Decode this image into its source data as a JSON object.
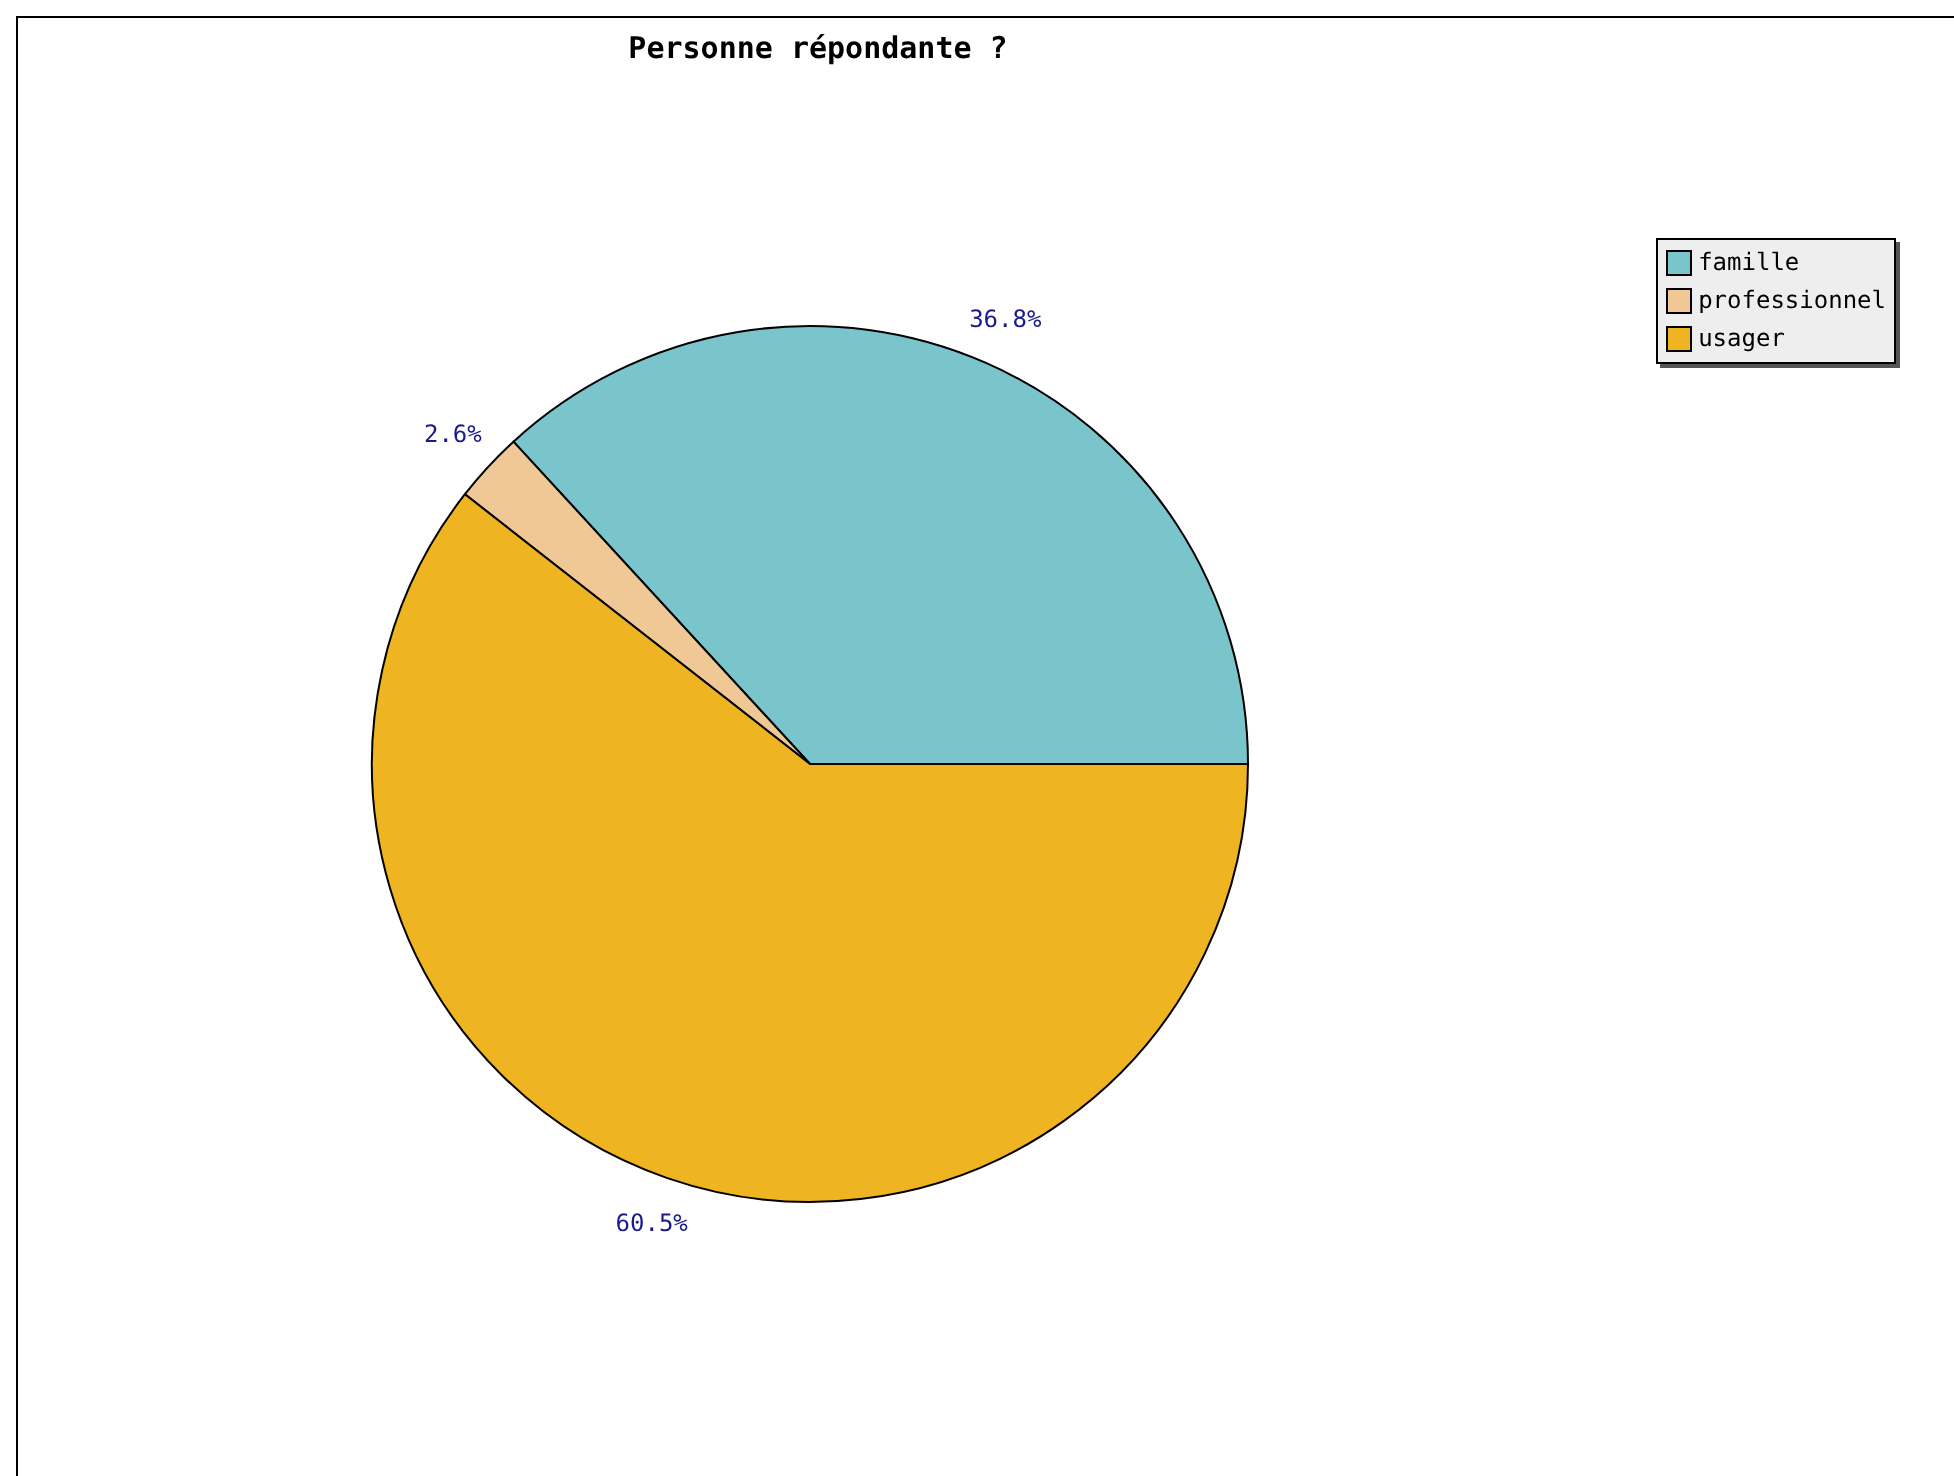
{
  "chart_data": {
    "type": "pie",
    "title": "Personne répondante ?",
    "categories": [
      "famille",
      "professionnel",
      "usager"
    ],
    "values": [
      36.8,
      2.6,
      60.5
    ],
    "value_labels": [
      "36.8%",
      "2.6%",
      "60.5%"
    ],
    "colors": [
      "#7ac4cc",
      "#f0c896",
      "#eeb422"
    ],
    "legend": "top right"
  }
}
